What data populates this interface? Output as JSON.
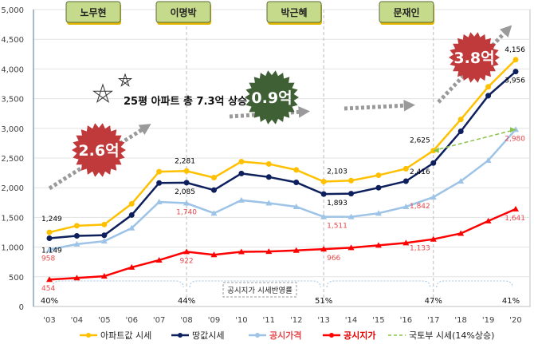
{
  "chart_data": {
    "type": "line",
    "title": "",
    "xlabel": "",
    "ylabel": "",
    "ylim": [
      0,
      5000
    ],
    "yticks": [
      "0",
      "500",
      "1,000",
      "1,500",
      "2,000",
      "2,500",
      "3,000",
      "3,500",
      "4,000",
      "4,500",
      "5,000"
    ],
    "grid": true,
    "legend_position": "bottom",
    "categories": [
      "'03",
      "'04",
      "'05",
      "'06",
      "'07",
      "'08",
      "'09",
      "'10",
      "'11",
      "'12",
      "'13",
      "'14",
      "'15",
      "'16",
      "'17",
      "'18",
      "'19",
      "'20"
    ],
    "series": [
      {
        "name": "아파트값 시세",
        "color": "#FFC000",
        "marker": "circle",
        "values": [
          1249,
          1360,
          1380,
          1730,
          2270,
          2281,
          2170,
          2440,
          2400,
          2300,
          2103,
          2120,
          2210,
          2320,
          2625,
          3150,
          3700,
          4156
        ]
      },
      {
        "name": "땅값시세",
        "color": "#0D1F5C",
        "marker": "circle",
        "values": [
          1149,
          1190,
          1200,
          1540,
          2080,
          2085,
          1960,
          2240,
          2180,
          2090,
          1893,
          1900,
          2000,
          2110,
          2416,
          2950,
          3550,
          3956
        ]
      },
      {
        "name": "공시가격",
        "color": "#9DC3E6",
        "marker": "triangle",
        "values": [
          958,
          1050,
          1100,
          1320,
          1760,
          1740,
          1570,
          1790,
          1740,
          1680,
          1511,
          1510,
          1570,
          1680,
          1842,
          2110,
          2460,
          2980
        ]
      },
      {
        "name": "공시지가",
        "color": "#FF0000",
        "marker": "triangle",
        "values": [
          454,
          480,
          510,
          660,
          780,
          922,
          870,
          920,
          925,
          945,
          966,
          990,
          1030,
          1070,
          1133,
          1230,
          1440,
          1641
        ]
      },
      {
        "name": "국토부 시세(14%상승)",
        "color": "#8BC34A",
        "dashed": true,
        "points": [
          {
            "x": "'17",
            "y": 2625
          },
          {
            "x": "'20",
            "y": 2980
          }
        ]
      }
    ],
    "data_labels": [
      {
        "series": 0,
        "x": "'03",
        "text": "1,249",
        "color": "#000"
      },
      {
        "series": 1,
        "x": "'03",
        "text": "1,149",
        "color": "#000"
      },
      {
        "series": 2,
        "x": "'03",
        "text": "958",
        "color": "#E8474B"
      },
      {
        "series": 3,
        "x": "'03",
        "text": "454",
        "color": "#E8474B"
      },
      {
        "series": 0,
        "x": "'08",
        "text": "2,281",
        "color": "#000"
      },
      {
        "series": 1,
        "x": "'08",
        "text": "2,085",
        "color": "#000"
      },
      {
        "series": 2,
        "x": "'08",
        "text": "1,740",
        "color": "#E8474B"
      },
      {
        "series": 3,
        "x": "'08",
        "text": "922",
        "color": "#E8474B"
      },
      {
        "series": 0,
        "x": "'13",
        "text": "2,103",
        "color": "#000"
      },
      {
        "series": 1,
        "x": "'13",
        "text": "1,893",
        "color": "#000"
      },
      {
        "series": 2,
        "x": "'13",
        "text": "1,511",
        "color": "#E8474B"
      },
      {
        "series": 3,
        "x": "'13",
        "text": "966",
        "color": "#E8474B"
      },
      {
        "series": 0,
        "x": "'17",
        "text": "2,625",
        "color": "#000"
      },
      {
        "series": 1,
        "x": "'17",
        "text": "2,416",
        "color": "#000"
      },
      {
        "series": 2,
        "x": "'17",
        "text": "1,842",
        "color": "#E8474B"
      },
      {
        "series": 3,
        "x": "'17",
        "text": "1,133",
        "color": "#E8474B"
      },
      {
        "series": 0,
        "x": "'20",
        "text": "4,156",
        "color": "#000"
      },
      {
        "series": 1,
        "x": "'20",
        "text": "3,956",
        "color": "#000"
      },
      {
        "series": 2,
        "x": "'20",
        "text": "2,980",
        "color": "#E8474B"
      },
      {
        "series": 3,
        "x": "'20",
        "text": "1,641",
        "color": "#E8474B"
      }
    ],
    "eras": [
      {
        "label": "노무현",
        "from": "'03",
        "to": "'08"
      },
      {
        "label": "이명박",
        "from": "'08",
        "to": "'13"
      },
      {
        "label": "박근혜",
        "from": "'13",
        "to": "'17"
      },
      {
        "label": "문재인",
        "from": "'17",
        "to": "'20"
      }
    ],
    "ratios": [
      {
        "x": "'03",
        "text": "40%"
      },
      {
        "x": "'08",
        "text": "44%"
      },
      {
        "x": "'13",
        "text": "51%"
      },
      {
        "x": "'17",
        "text": "47%"
      },
      {
        "x": "'20",
        "text": "41%"
      }
    ],
    "ratio_label": "공시지가 시세반영률",
    "headline": "25평 아파트 총 7.3억 상승",
    "increases": [
      {
        "text": "2.6억",
        "color": "#C0393B"
      },
      {
        "text": "0.9억",
        "color": "#3F5F35"
      },
      {
        "text": "3.8억",
        "color": "#C0393B"
      }
    ]
  }
}
